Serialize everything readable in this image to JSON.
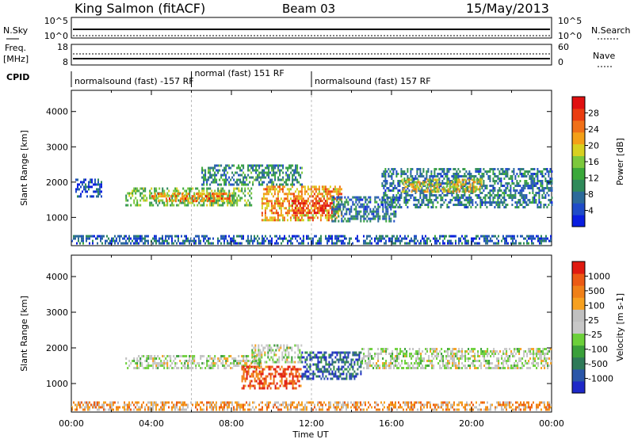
{
  "header": {
    "station": "King Salmon (fitACF)",
    "beam": "Beam 03",
    "date": "15/May/2013"
  },
  "noise_panel": {
    "left_label": "N.Sky",
    "right_label": "N.Search",
    "left_ticks": [
      "10^5",
      "10^0"
    ],
    "right_ticks": [
      "10^5",
      "10^0"
    ]
  },
  "freq_panel": {
    "left_label": "Freq.",
    "left_unit": "[MHz]",
    "right_label": "Nave",
    "left_ticks": [
      "18",
      "8"
    ],
    "right_ticks": [
      "60",
      "0"
    ]
  },
  "cpid": {
    "label": "CPID",
    "segments": [
      {
        "text": "normalsound (fast) -157 RF",
        "start_hour": 0,
        "end_hour": 6
      },
      {
        "text": "normal (fast) 151 RF",
        "start_hour": 6,
        "end_hour": 12
      },
      {
        "text": "normalsound (fast) 157 RF",
        "start_hour": 12,
        "end_hour": 24
      }
    ]
  },
  "chart_data": [
    {
      "type": "heatmap",
      "title": "Power",
      "ylabel": "Slant Range [km]",
      "xlabel": "",
      "x_unit": "hours UT",
      "xlim": [
        0,
        24
      ],
      "ylim": [
        200,
        4600
      ],
      "y_ticks": [
        "1000",
        "2000",
        "3000",
        "4000"
      ],
      "colorbar": {
        "label": "Power [dB]",
        "ticks": [
          "4",
          "8",
          "12",
          "16",
          "20",
          "24",
          "28"
        ],
        "colors": [
          "#0a1ee0",
          "#1f4cc8",
          "#2c6a9a",
          "#2f8a5a",
          "#3aa83a",
          "#7cc83c",
          "#d8d020",
          "#f4a018",
          "#f07018",
          "#ea3c10",
          "#e01010"
        ]
      },
      "echo_regions": [
        {
          "start_hour": 0.2,
          "end_hour": 1.5,
          "range_min_km": 1600,
          "range_max_km": 2100,
          "level": 0.15
        },
        {
          "start_hour": 2.7,
          "end_hour": 9.0,
          "range_min_km": 1350,
          "range_max_km": 1850,
          "level": 0.45
        },
        {
          "start_hour": 4.0,
          "end_hour": 8.0,
          "range_min_km": 1450,
          "range_max_km": 1700,
          "level": 0.75
        },
        {
          "start_hour": 6.5,
          "end_hour": 11.5,
          "range_min_km": 1900,
          "range_max_km": 2500,
          "level": 0.3
        },
        {
          "start_hour": 9.5,
          "end_hour": 13.5,
          "range_min_km": 900,
          "range_max_km": 1900,
          "level": 0.7
        },
        {
          "start_hour": 11.0,
          "end_hour": 13.0,
          "range_min_km": 1100,
          "range_max_km": 1500,
          "level": 0.95
        },
        {
          "start_hour": 13.0,
          "end_hour": 16.2,
          "range_min_km": 900,
          "range_max_km": 1600,
          "level": 0.25
        },
        {
          "start_hour": 15.5,
          "end_hour": 24.0,
          "range_min_km": 1300,
          "range_max_km": 2400,
          "level": 0.25
        },
        {
          "start_hour": 16.5,
          "end_hour": 20.5,
          "range_min_km": 1700,
          "range_max_km": 2100,
          "level": 0.6
        },
        {
          "start_hour": 0.0,
          "end_hour": 24.0,
          "range_min_km": 250,
          "range_max_km": 500,
          "level": 0.2
        }
      ]
    },
    {
      "type": "heatmap",
      "title": "Velocity",
      "ylabel": "Slant Range [km]",
      "xlabel": "Time UT",
      "x_unit": "hours UT",
      "xlim": [
        0,
        24
      ],
      "ylim": [
        200,
        4600
      ],
      "x_ticks": [
        "00:00",
        "04:00",
        "08:00",
        "12:00",
        "16:00",
        "20:00",
        "00:00"
      ],
      "y_ticks": [
        "1000",
        "2000",
        "3000",
        "4000"
      ],
      "colorbar": {
        "label": "Velocity [m s-1]",
        "ticks": [
          "1000",
          "500",
          "100",
          "25",
          "-25",
          "-100",
          "-500",
          "-1000"
        ],
        "colors": [
          "#1e28c8",
          "#2a56a8",
          "#2e7a58",
          "#3aa03a",
          "#6cd03a",
          "#c8c8c8",
          "#c0c0c0",
          "#f6a020",
          "#f08018",
          "#ec5a14",
          "#e01a10"
        ]
      },
      "echo_regions": [
        {
          "start_hour": 2.7,
          "end_hour": 9.5,
          "range_min_km": 1450,
          "range_max_km": 1800,
          "level": 0.5
        },
        {
          "start_hour": 9.0,
          "end_hour": 11.5,
          "range_min_km": 1600,
          "range_max_km": 2100,
          "level": 0.5
        },
        {
          "start_hour": 8.5,
          "end_hour": 11.5,
          "range_min_km": 850,
          "range_max_km": 1500,
          "level": 0.88
        },
        {
          "start_hour": 11.5,
          "end_hour": 14.5,
          "range_min_km": 1100,
          "range_max_km": 1900,
          "level": 0.15
        },
        {
          "start_hour": 14.5,
          "end_hour": 24.0,
          "range_min_km": 1400,
          "range_max_km": 2000,
          "level": 0.5
        },
        {
          "start_hour": 0.0,
          "end_hour": 24.0,
          "range_min_km": 250,
          "range_max_km": 500,
          "level": 0.7
        }
      ]
    }
  ]
}
